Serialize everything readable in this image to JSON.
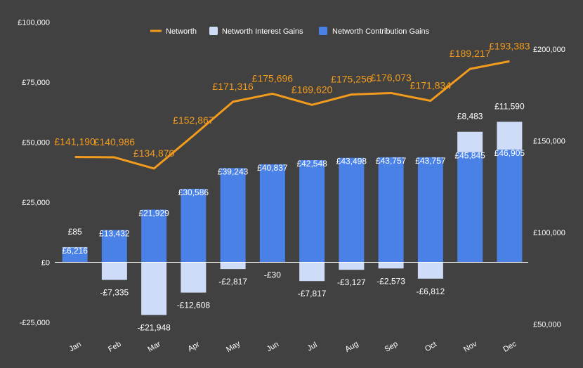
{
  "colors": {
    "background": "#414141",
    "networth": "#f29b1d",
    "interest": "#cfdcf7",
    "contribution": "#4a81e6",
    "text": "#ffffff",
    "zero_line": "#ffffff"
  },
  "chart_data": {
    "type": "bar",
    "title": "",
    "xlabel": "",
    "ylabel": "",
    "categories": [
      "Jan",
      "Feb",
      "Mar",
      "Apr",
      "May",
      "Jun",
      "Jul",
      "Aug",
      "Sep",
      "Oct",
      "Nov",
      "Dec"
    ],
    "y_left": {
      "lim": [
        -25000,
        100000
      ],
      "ticks": [
        -25000,
        0,
        25000,
        50000,
        75000,
        100000
      ],
      "tick_labels": [
        "-£25,000",
        "£0",
        "£25,000",
        "£50,000",
        "£75,000",
        "£100,000"
      ]
    },
    "y_right": {
      "lim": [
        50000,
        200000
      ],
      "ticks": [
        50000,
        100000,
        150000,
        200000
      ],
      "tick_labels": [
        "£50,000",
        "£100,000",
        "£150,000",
        "£200,000"
      ]
    },
    "legend": {
      "placement": "top",
      "entries": [
        "Networth",
        "Networth Interest Gains",
        "Networth Contribution Gains"
      ]
    },
    "grid": false,
    "series": [
      {
        "name": "Networth Contribution Gains",
        "kind": "bar",
        "axis": "left",
        "values": [
          6216,
          13432,
          21929,
          30586,
          39243,
          40837,
          42548,
          43498,
          43757,
          43757,
          45845,
          46905
        ],
        "labels": [
          "£6,216",
          "£13,432",
          "£21,929",
          "£30,586",
          "£39,243",
          "£40,837",
          "£42,548",
          "£43,498",
          "£43,757",
          "£43,757",
          "£45,845",
          "£46,905"
        ]
      },
      {
        "name": "Networth Interest Gains",
        "kind": "bar",
        "axis": "left",
        "values": [
          85,
          -7335,
          -21948,
          -12608,
          -2817,
          -30,
          -7817,
          -3127,
          -2573,
          -6812,
          8483,
          11590
        ],
        "labels": [
          "£85",
          "-£7,335",
          "-£21,948",
          "-£12,608",
          "-£2,817",
          "-£30",
          "-£7,817",
          "-£3,127",
          "-£2,573",
          "-£6,812",
          "£8,483",
          "£11,590"
        ]
      },
      {
        "name": "Networth",
        "kind": "line",
        "axis": "right",
        "values": [
          141190,
          140986,
          134870,
          152867,
          171316,
          175696,
          169620,
          175256,
          176073,
          171834,
          189217,
          193383
        ],
        "labels": [
          "£141,190",
          "£140,986",
          "£134,870",
          "£152,867",
          "£171,316",
          "£175,696",
          "£169,620",
          "£175,256",
          "£176,073",
          "£171,834",
          "£189,217",
          "£193,383"
        ]
      }
    ]
  }
}
